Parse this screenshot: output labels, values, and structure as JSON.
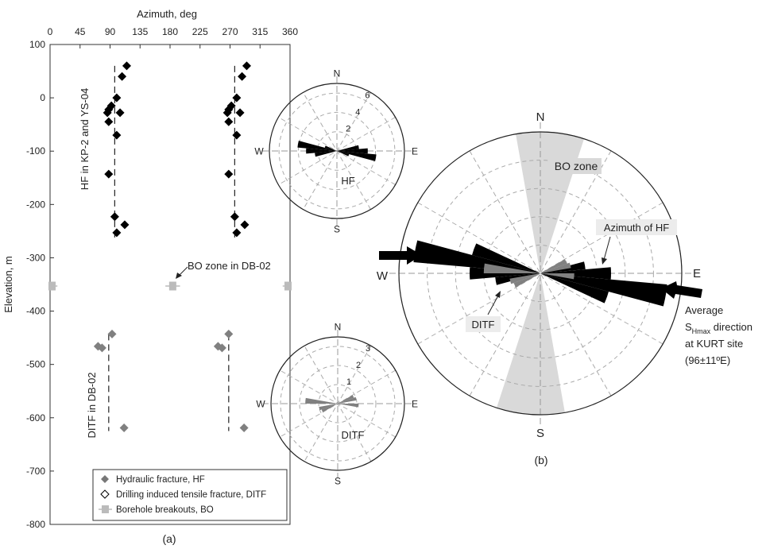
{
  "chart_data": [
    {
      "type": "scatter",
      "panel_label": "(a)",
      "xlabel": "Azimuth, deg",
      "ylabel": "Elevation, m",
      "xlim": [
        0,
        360
      ],
      "ylim": [
        -800,
        100
      ],
      "xticks": [
        "0",
        "45",
        "90",
        "135",
        "180",
        "225",
        "270",
        "315",
        "360"
      ],
      "yticks": [
        "100",
        "0",
        "-100",
        "-200",
        "-300",
        "-400",
        "-500",
        "-600",
        "-700",
        "-800"
      ],
      "annotations": {
        "hf_group": "HF in KP-2 and YS-04",
        "ditf_group": "DITF in DB-02",
        "bo_zone": "BO zone in DB-02"
      },
      "legend": {
        "position": "bottom-right",
        "entries": [
          {
            "label": "Hydraulic fracture, HF",
            "color": "#777777"
          },
          {
            "label": "Drilling induced tensile fracture, DITF",
            "color": "#000000"
          },
          {
            "label": "Borehole breakouts, BO",
            "color": "#bbbbbb"
          }
        ]
      },
      "series": [
        {
          "name": "HF",
          "color": "#000000",
          "points": [
            {
              "az": 115,
              "el": 60
            },
            {
              "az": 108,
              "el": 40
            },
            {
              "az": 100,
              "el": 0
            },
            {
              "az": 92,
              "el": -15
            },
            {
              "az": 88,
              "el": -22
            },
            {
              "az": 86,
              "el": -28
            },
            {
              "az": 105,
              "el": -28
            },
            {
              "az": 88,
              "el": -45
            },
            {
              "az": 100,
              "el": -70
            },
            {
              "az": 88,
              "el": -143
            },
            {
              "az": 97,
              "el": -223
            },
            {
              "az": 112,
              "el": -238
            },
            {
              "az": 100,
              "el": -253
            },
            {
              "az": 295,
              "el": 60
            },
            {
              "az": 288,
              "el": 40
            },
            {
              "az": 280,
              "el": 0
            },
            {
              "az": 272,
              "el": -15
            },
            {
              "az": 268,
              "el": -22
            },
            {
              "az": 266,
              "el": -28
            },
            {
              "az": 285,
              "el": -28
            },
            {
              "az": 268,
              "el": -45
            },
            {
              "az": 280,
              "el": -70
            },
            {
              "az": 268,
              "el": -143
            },
            {
              "az": 277,
              "el": -223
            },
            {
              "az": 292,
              "el": -238
            },
            {
              "az": 280,
              "el": -253
            }
          ]
        },
        {
          "name": "DITF",
          "color": "#808080",
          "points": [
            {
              "az": 93,
              "el": -443
            },
            {
              "az": 72,
              "el": -466
            },
            {
              "az": 78,
              "el": -469
            },
            {
              "az": 111,
              "el": -619
            },
            {
              "az": 268,
              "el": -443
            },
            {
              "az": 252,
              "el": -466
            },
            {
              "az": 258,
              "el": -469
            },
            {
              "az": 291,
              "el": -619
            }
          ]
        },
        {
          "name": "BO",
          "color": "#bbbbbb",
          "points": [
            {
              "az": 3,
              "el": -353,
              "err": 8
            },
            {
              "az": 184,
              "el": -353,
              "err": 11
            },
            {
              "az": 357,
              "el": -353,
              "err": 8
            }
          ]
        }
      ],
      "mean_lines": [
        {
          "az": 97,
          "from": -263,
          "to": 60
        },
        {
          "az": 277,
          "from": -263,
          "to": 60
        },
        {
          "az": 88,
          "from": -625,
          "to": -443
        },
        {
          "az": 268,
          "from": -625,
          "to": -443
        }
      ]
    },
    {
      "type": "rose",
      "title": "HF",
      "directions": [
        "N",
        "E",
        "S",
        "W"
      ],
      "rings": [
        2,
        4,
        6
      ],
      "rmax": 7,
      "color": "#000000",
      "petals": [
        {
          "az": 80,
          "value": 2.3
        },
        {
          "az": 90,
          "value": 3.2
        },
        {
          "az": 100,
          "value": 4.1
        },
        {
          "az": 110,
          "value": 1.3
        },
        {
          "az": 260,
          "value": 2.3
        },
        {
          "az": 270,
          "value": 3.2
        },
        {
          "az": 280,
          "value": 4.1
        },
        {
          "az": 290,
          "value": 1.3
        }
      ]
    },
    {
      "type": "rose",
      "title": "DITF",
      "directions": [
        "N",
        "E",
        "S",
        "W"
      ],
      "rings": [
        1,
        2,
        3
      ],
      "rmax": 3.5,
      "color": "#808080",
      "petals": [
        {
          "az": 65,
          "value": 0.9
        },
        {
          "az": 75,
          "value": 1.0
        },
        {
          "az": 95,
          "value": 1.1
        },
        {
          "az": 245,
          "value": 0.9
        },
        {
          "az": 255,
          "value": 1.0
        },
        {
          "az": 275,
          "value": 1.7
        }
      ]
    },
    {
      "type": "rose",
      "panel_label": "(b)",
      "directions": [
        "N",
        "E",
        "S",
        "W"
      ],
      "rings": [
        1,
        2,
        3,
        4,
        5
      ],
      "rmax": 5,
      "bo_zone": {
        "label": "BO zone",
        "az_from": 170,
        "az_to": 198,
        "color": "#d9d9d9"
      },
      "annotations": {
        "hf": "Azimuth of HF",
        "ditf": "DITF",
        "shmax": [
          "Average",
          "S",
          "Hmax",
          " direction",
          "at KURT site",
          "(96±11ºE)"
        ]
      },
      "series": [
        {
          "name": "HF",
          "color": "#000000",
          "petals": [
            {
              "az": 80,
              "value": 1.6
            },
            {
              "az": 90,
              "value": 2.5
            },
            {
              "az": 100,
              "value": 4.5
            },
            {
              "az": 110,
              "value": 2.5
            },
            {
              "az": 260,
              "value": 1.6
            },
            {
              "az": 270,
              "value": 2.5
            },
            {
              "az": 280,
              "value": 4.5
            },
            {
              "az": 290,
              "value": 2.5
            }
          ]
        },
        {
          "name": "DITF",
          "color": "#808080",
          "petals": [
            {
              "az": 65,
              "value": 1.0
            },
            {
              "az": 75,
              "value": 1.1
            },
            {
              "az": 95,
              "value": 1.2
            },
            {
              "az": 245,
              "value": 1.0
            },
            {
              "az": 255,
              "value": 1.1
            },
            {
              "az": 275,
              "value": 2.0
            }
          ]
        }
      ]
    }
  ]
}
